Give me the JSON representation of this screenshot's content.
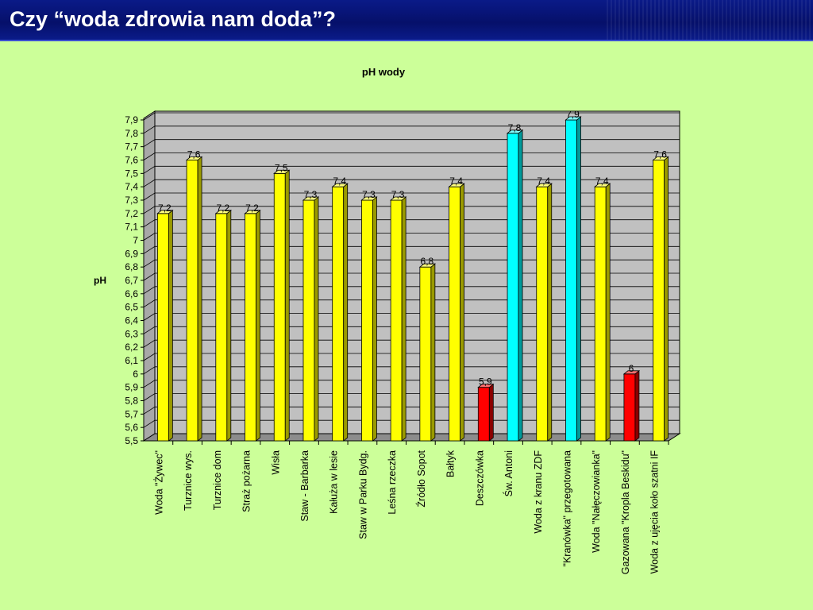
{
  "slide": {
    "title": "Czy “woda zdrowia nam doda”?"
  },
  "chart_data": {
    "type": "bar",
    "title": "pH wody",
    "ylabel": "pH",
    "xlabel": "",
    "ylim": [
      5.5,
      7.9
    ],
    "ystep": 0.1,
    "grid": true,
    "legend": "none",
    "categories": [
      "Woda \"Żywec\"",
      "Turznice wys.",
      "Turznice dom",
      "Straż pożarna",
      "Wisła",
      "Staw - Barbarka",
      "Kałuża w lesie",
      "Staw w Parku Bydg.",
      "Leśna rzeczka",
      "Źródło Sopot",
      "Bałtyk",
      "Deszczówka",
      "Św. Antoni",
      "Woda z kranu ZDF",
      "\"Kranówka\" przegotowana",
      "Woda \"Nałęczowianka\"",
      "Gazowana \"Kropla Beskidu\"",
      "Woda z ujęcia koło szatni IF"
    ],
    "values": [
      7.2,
      7.6,
      7.2,
      7.2,
      7.5,
      7.3,
      7.4,
      7.3,
      7.3,
      6.8,
      7.4,
      5.9,
      7.8,
      7.4,
      7.9,
      7.4,
      6,
      7.6
    ],
    "data_labels": [
      "7,2",
      "7,6",
      "7,2",
      "7,2",
      "7,5",
      "7,3",
      "7,4",
      "7,3",
      "7,3",
      "6,8",
      "7,4",
      "5,9",
      "7,8",
      "7,4",
      "7,9",
      "7,4",
      "6",
      "7,6"
    ],
    "bar_colors": [
      "yellow",
      "yellow",
      "yellow",
      "yellow",
      "yellow",
      "yellow",
      "yellow",
      "yellow",
      "yellow",
      "yellow",
      "yellow",
      "red",
      "cyan",
      "yellow",
      "cyan",
      "yellow",
      "red",
      "yellow"
    ],
    "palette": {
      "yellow": {
        "front": "#ffff00",
        "side": "#9a9a00",
        "top": "#ffff80"
      },
      "red": {
        "front": "#ff0000",
        "side": "#8a0000",
        "top": "#ff7070"
      },
      "cyan": {
        "front": "#00ffff",
        "side": "#009a9a",
        "top": "#80ffff"
      }
    },
    "plot_background": "#c0c0c0",
    "page_background": "#ccff99"
  }
}
